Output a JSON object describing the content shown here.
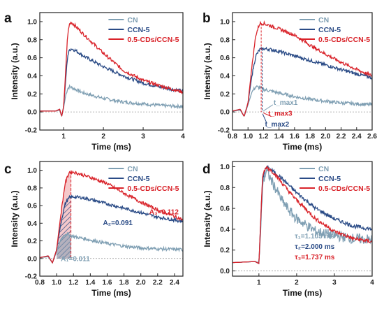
{
  "colors": {
    "CN": "#7f9fb3",
    "CCN5": "#2a4b86",
    "CDs": "#d9232a",
    "axis": "#222222"
  },
  "chart_data": [
    {
      "panel": "a",
      "type": "line",
      "xlabel": "Time (ms)",
      "ylabel": "Intensity (a.u.)",
      "xlim": [
        0.4,
        4
      ],
      "ylim": [
        -0.2,
        1.1
      ],
      "xticks": [
        1,
        2,
        3,
        4
      ],
      "yticks": [
        -0.2,
        0.0,
        0.2,
        0.4,
        0.6,
        0.8,
        1.0
      ],
      "legend": {
        "position": "top-right",
        "entries": [
          "CN",
          "CCN-5",
          "0.5-CDs/CCN-5"
        ]
      },
      "series": [
        {
          "name": "CN",
          "color": "#7f9fb3",
          "x": [
            0.4,
            0.8,
            0.9,
            0.95,
            1.0,
            1.05,
            1.1,
            1.15,
            1.2,
            1.5,
            2.0,
            2.5,
            3.0,
            3.5,
            4.0
          ],
          "y": [
            0.01,
            0.01,
            0.02,
            -0.05,
            0.05,
            0.18,
            0.26,
            0.28,
            0.27,
            0.21,
            0.15,
            0.11,
            0.09,
            0.07,
            0.06
          ]
        },
        {
          "name": "CCN-5",
          "color": "#2a4b86",
          "x": [
            0.4,
            0.8,
            0.9,
            0.95,
            1.0,
            1.05,
            1.1,
            1.15,
            1.2,
            1.3,
            1.5,
            2.0,
            2.5,
            3.0,
            3.5,
            4.0
          ],
          "y": [
            0.01,
            0.01,
            0.03,
            -0.05,
            0.06,
            0.35,
            0.62,
            0.69,
            0.7,
            0.68,
            0.62,
            0.5,
            0.4,
            0.32,
            0.27,
            0.23
          ]
        },
        {
          "name": "0.5-CDs/CCN-5",
          "color": "#d9232a",
          "x": [
            0.4,
            0.8,
            0.9,
            0.95,
            1.0,
            1.05,
            1.1,
            1.15,
            1.2,
            1.3,
            1.5,
            2.0,
            2.5,
            3.0,
            3.5,
            4.0
          ],
          "y": [
            0.01,
            0.01,
            0.03,
            -0.05,
            0.06,
            0.45,
            0.85,
            0.98,
            0.99,
            0.95,
            0.86,
            0.65,
            0.46,
            0.35,
            0.28,
            0.22
          ]
        }
      ]
    },
    {
      "panel": "b",
      "type": "line",
      "xlabel": "Time (ms)",
      "ylabel": "Intensity (a.u.)",
      "xlim": [
        0.8,
        2.6
      ],
      "ylim": [
        -0.2,
        1.1
      ],
      "xticks": [
        0.8,
        1.0,
        1.2,
        1.4,
        1.6,
        1.8,
        2.0,
        2.2,
        2.4,
        2.6
      ],
      "yticks": [
        -0.2,
        0.0,
        0.2,
        0.4,
        0.6,
        0.8,
        1.0
      ],
      "legend": {
        "position": "top-right",
        "entries": [
          "CN",
          "CCN-5",
          "0.5-CDs/CCN-5"
        ]
      },
      "annotations": [
        "t_max1",
        "t_max3",
        "t_max2"
      ],
      "series": [
        {
          "name": "CN",
          "color": "#7f9fb3",
          "x": [
            0.8,
            0.9,
            0.95,
            1.0,
            1.05,
            1.1,
            1.15,
            1.2,
            1.4,
            1.6,
            1.8,
            2.0,
            2.2,
            2.4,
            2.6
          ],
          "y": [
            0.01,
            0.02,
            -0.05,
            0.08,
            0.22,
            0.28,
            0.27,
            0.25,
            0.21,
            0.17,
            0.14,
            0.12,
            0.1,
            0.09,
            0.08
          ]
        },
        {
          "name": "CCN-5",
          "color": "#2a4b86",
          "x": [
            0.8,
            0.9,
            0.95,
            1.0,
            1.05,
            1.1,
            1.15,
            1.2,
            1.3,
            1.4,
            1.6,
            1.8,
            2.0,
            2.2,
            2.4,
            2.6
          ],
          "y": [
            0.01,
            0.03,
            -0.05,
            0.1,
            0.4,
            0.62,
            0.69,
            0.7,
            0.69,
            0.67,
            0.62,
            0.57,
            0.52,
            0.47,
            0.42,
            0.38
          ]
        },
        {
          "name": "0.5-CDs/CCN-5",
          "color": "#d9232a",
          "x": [
            0.8,
            0.9,
            0.95,
            1.0,
            1.05,
            1.1,
            1.15,
            1.2,
            1.3,
            1.4,
            1.6,
            1.8,
            2.0,
            2.2,
            2.4,
            2.6
          ],
          "y": [
            0.01,
            0.03,
            -0.05,
            0.1,
            0.5,
            0.85,
            0.98,
            0.98,
            0.95,
            0.92,
            0.85,
            0.74,
            0.64,
            0.55,
            0.47,
            0.4
          ]
        }
      ]
    },
    {
      "panel": "c",
      "type": "area",
      "xlabel": "Time (ms)",
      "ylabel": "Intensity (a.u.)",
      "xlim": [
        0.8,
        2.5
      ],
      "ylim": [
        -0.2,
        1.1
      ],
      "xticks": [
        0.8,
        1.0,
        1.2,
        1.4,
        1.6,
        1.8,
        2.0,
        2.2,
        2.4
      ],
      "yticks": [
        -0.2,
        0.0,
        0.2,
        0.4,
        0.6,
        0.8,
        1.0
      ],
      "legend": {
        "position": "top-right",
        "entries": [
          "CN",
          "CCN-5",
          "0.5-CDs/CCN-5"
        ]
      },
      "areas": [
        {
          "label": "A₃=0.112",
          "series": "0.5-CDs/CCN-5"
        },
        {
          "label": "A₂=0.091",
          "series": "CCN-5"
        },
        {
          "label": "A₁=0.011",
          "series": "CN"
        }
      ],
      "series": [
        {
          "name": "CN",
          "color": "#7f9fb3",
          "x": [
            0.8,
            0.9,
            0.95,
            1.0,
            1.05,
            1.1,
            1.15,
            1.2,
            1.4,
            1.6,
            1.8,
            2.0,
            2.2,
            2.5
          ],
          "y": [
            0.01,
            0.02,
            -0.05,
            0.08,
            0.22,
            0.28,
            0.27,
            0.25,
            0.21,
            0.17,
            0.14,
            0.12,
            0.11,
            0.1
          ]
        },
        {
          "name": "CCN-5",
          "color": "#2a4b86",
          "x": [
            0.8,
            0.9,
            0.95,
            1.0,
            1.05,
            1.1,
            1.15,
            1.2,
            1.3,
            1.4,
            1.6,
            1.8,
            2.0,
            2.2,
            2.5
          ],
          "y": [
            0.01,
            0.03,
            -0.05,
            0.1,
            0.4,
            0.62,
            0.69,
            0.7,
            0.69,
            0.67,
            0.62,
            0.57,
            0.52,
            0.47,
            0.42
          ]
        },
        {
          "name": "0.5-CDs/CCN-5",
          "color": "#d9232a",
          "x": [
            0.8,
            0.9,
            0.95,
            1.0,
            1.05,
            1.1,
            1.15,
            1.2,
            1.3,
            1.4,
            1.6,
            1.8,
            2.0,
            2.2,
            2.5
          ],
          "y": [
            0.01,
            0.03,
            -0.05,
            0.1,
            0.5,
            0.85,
            0.98,
            0.98,
            0.95,
            0.92,
            0.85,
            0.74,
            0.64,
            0.55,
            0.44
          ]
        }
      ]
    },
    {
      "panel": "d",
      "type": "line",
      "xlabel": "Time (ms)",
      "ylabel": "Intensity (a.u.)",
      "xlim": [
        0.3,
        4
      ],
      "ylim": [
        -0.05,
        1.05
      ],
      "xticks": [
        1,
        2,
        3,
        4
      ],
      "yticks": [
        0.0,
        0.2,
        0.4,
        0.6,
        0.8,
        1.0
      ],
      "legend": {
        "position": "top-right",
        "entries": [
          "CN",
          "CCN-5",
          "0.5-CDs/CCN-5"
        ]
      },
      "annotations": [
        "τ₁=1.103 ms",
        "τ₂=2.000 ms",
        "τ₃=1.737 ms"
      ],
      "series": [
        {
          "name": "CN",
          "color": "#7f9fb3",
          "x": [
            0.3,
            0.9,
            1.0,
            1.05,
            1.1,
            1.2,
            1.4,
            1.6,
            1.8,
            2.0,
            2.5,
            3.0,
            3.5,
            4.0
          ],
          "y": [
            0.08,
            0.09,
            0.08,
            0.4,
            0.85,
            0.96,
            0.82,
            0.68,
            0.58,
            0.5,
            0.38,
            0.34,
            0.31,
            0.3
          ]
        },
        {
          "name": "CCN-5",
          "color": "#2a4b86",
          "x": [
            0.3,
            0.9,
            1.0,
            1.05,
            1.1,
            1.2,
            1.4,
            1.6,
            1.8,
            2.0,
            2.5,
            3.0,
            3.5,
            4.0
          ],
          "y": [
            0.08,
            0.09,
            0.07,
            0.5,
            0.9,
            1.0,
            0.95,
            0.89,
            0.82,
            0.75,
            0.6,
            0.5,
            0.43,
            0.4
          ]
        },
        {
          "name": "0.5-CDs/CCN-5",
          "color": "#d9232a",
          "x": [
            0.3,
            0.9,
            1.0,
            1.05,
            1.1,
            1.2,
            1.4,
            1.6,
            1.8,
            2.0,
            2.5,
            3.0,
            3.5,
            4.0
          ],
          "y": [
            0.08,
            0.09,
            0.07,
            0.5,
            0.92,
            1.0,
            0.94,
            0.85,
            0.76,
            0.68,
            0.5,
            0.38,
            0.31,
            0.28
          ]
        }
      ]
    }
  ]
}
